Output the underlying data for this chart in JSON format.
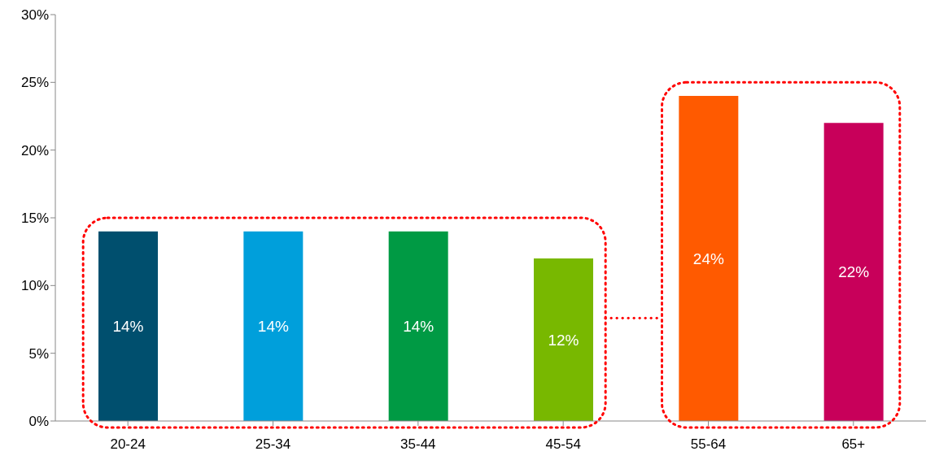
{
  "chart_data": {
    "type": "bar",
    "categories": [
      "20-24",
      "25-34",
      "35-44",
      "45-54",
      "55-64",
      "65+"
    ],
    "values": [
      14,
      14,
      14,
      12,
      24,
      22
    ],
    "colors": [
      "#004f6e",
      "#009fdb",
      "#009a44",
      "#78b800",
      "#ff5a00",
      "#c8005a"
    ],
    "value_labels": [
      "14%",
      "14%",
      "14%",
      "12%",
      "24%",
      "22%"
    ],
    "ylim": [
      0,
      30
    ],
    "yticks": [
      {
        "value": 0,
        "label": "0%"
      },
      {
        "value": 5,
        "label": "5%"
      },
      {
        "value": 10,
        "label": "10%"
      },
      {
        "value": 15,
        "label": "15%"
      },
      {
        "value": 20,
        "label": "20%"
      },
      {
        "value": 25,
        "label": "25%"
      },
      {
        "value": 30,
        "label": "30%"
      }
    ],
    "grid": false,
    "legend": false
  }
}
